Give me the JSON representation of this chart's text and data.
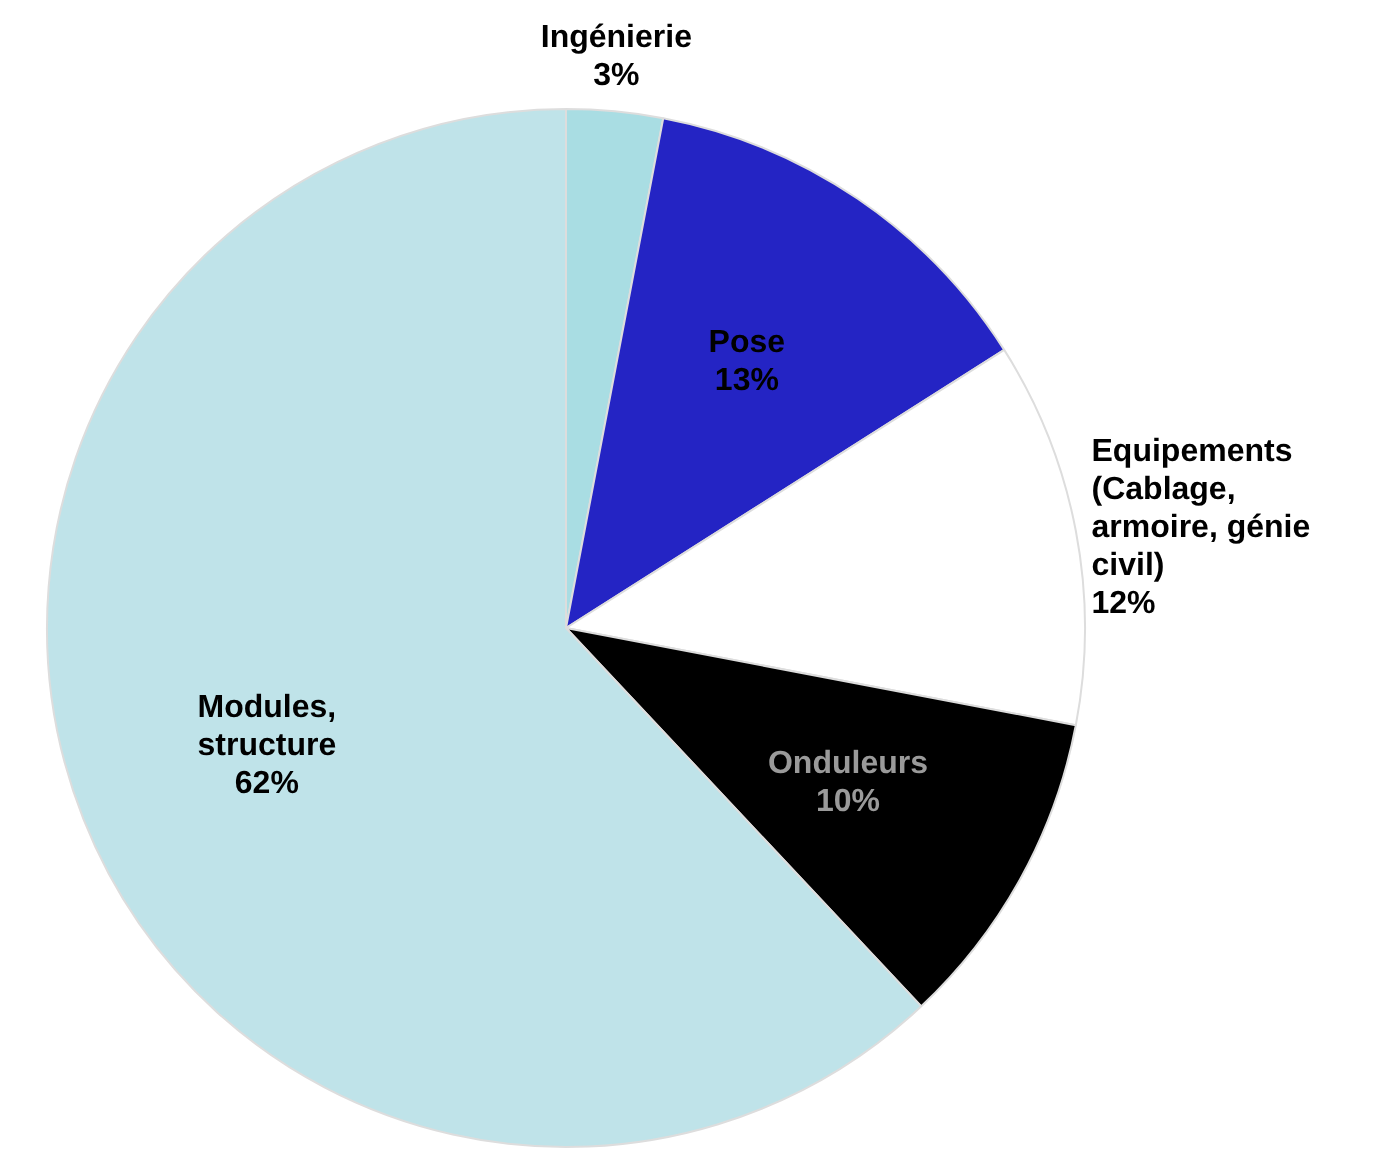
{
  "chart_data": {
    "type": "pie",
    "categories": [
      "Ingénierie",
      "Pose",
      "Equipements (Cablage, armoire, génie civil)",
      "Onduleurs",
      "Modules, structure"
    ],
    "values": [
      3,
      13,
      12,
      10,
      62
    ],
    "value_labels": [
      "3%",
      "13%",
      "12%",
      "10%",
      "62%"
    ],
    "colors": [
      "#a9dde3",
      "#2424c4",
      "#ffffff",
      "#000000",
      "#bfe3e9"
    ],
    "legend": false
  }
}
